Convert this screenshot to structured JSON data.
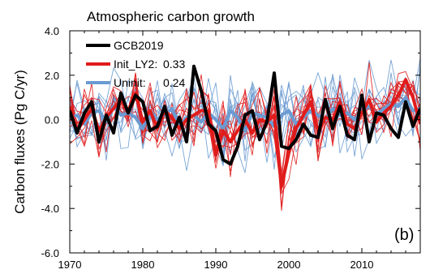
{
  "chart_data": {
    "type": "line",
    "title": "Atmospheric carbon growth",
    "ylabel": "Carbon fluxes (Pg C/yr)",
    "xlabel": "",
    "xlim": [
      1970,
      2018
    ],
    "ylim": [
      -6.0,
      4.0
    ],
    "x_ticks": [
      1970,
      1980,
      1990,
      2000,
      2010
    ],
    "x_tick_labels": [
      "1970",
      "1980",
      "1990",
      "2000",
      "2010"
    ],
    "y_ticks": [
      -6.0,
      -4.0,
      -2.0,
      0.0,
      2.0,
      4.0
    ],
    "y_tick_labels": [
      "-6.0",
      "-4.0",
      "-2.0",
      "0.0",
      "2.0",
      "4.0"
    ],
    "panel_label": "(b)",
    "legend_position": "top-left",
    "legend": [
      {
        "series": "GCB2019",
        "label": "GCB2019",
        "score": "",
        "color": "#000000"
      },
      {
        "series": "Init_LY2",
        "label": "Init_LY2:",
        "score": "0.33",
        "color": "#e01b1b"
      },
      {
        "series": "Uninit",
        "label": "Uninit:",
        "score": "0.24",
        "color": "#6b9bd2"
      }
    ],
    "x": [
      1970,
      1971,
      1972,
      1973,
      1974,
      1975,
      1976,
      1977,
      1978,
      1979,
      1980,
      1981,
      1982,
      1983,
      1984,
      1985,
      1986,
      1987,
      1988,
      1989,
      1990,
      1991,
      1992,
      1993,
      1994,
      1995,
      1996,
      1997,
      1998,
      1999,
      2000,
      2001,
      2002,
      2003,
      2004,
      2005,
      2006,
      2007,
      2008,
      2009,
      2010,
      2011,
      2012,
      2013,
      2014,
      2015,
      2016,
      2017,
      2018
    ],
    "series": [
      {
        "name": "GCB2019",
        "color": "#000000",
        "width": 4,
        "values": [
          0.4,
          -0.6,
          0.3,
          0.8,
          -1.0,
          0.2,
          -0.6,
          1.2,
          0.3,
          1.1,
          0.8,
          -0.5,
          -0.3,
          0.6,
          -0.7,
          0.1,
          -1.0,
          2.4,
          1.3,
          -0.2,
          -0.5,
          -1.8,
          -2.0,
          -1.2,
          0.2,
          0.4,
          -0.9,
          -0.1,
          2.1,
          -1.2,
          -1.3,
          -0.9,
          -0.2,
          -0.7,
          -0.8,
          0.9,
          -0.4,
          0.6,
          -0.7,
          -0.9,
          1.1,
          -1.0,
          0.3,
          0.2,
          -0.4,
          -0.8,
          0.8,
          -0.3,
          0.5
        ]
      },
      {
        "name": "Init_LY2",
        "color": "#e01b1b",
        "width": 4,
        "values": [
          0.6,
          -0.5,
          0.0,
          0.5,
          -0.5,
          0.1,
          0.5,
          0.9,
          0.3,
          1.2,
          -0.1,
          0.4,
          -0.4,
          0.4,
          0.1,
          -0.4,
          0.0,
          0.2,
          0.4,
          0.4,
          -1.6,
          -0.5,
          -1.0,
          -0.5,
          0.0,
          -0.6,
          0.0,
          -0.1,
          0.2,
          -3.0,
          -1.5,
          -0.4,
          0.2,
          0.8,
          -0.5,
          0.1,
          0.0,
          0.8,
          -0.2,
          -0.4,
          0.3,
          0.9,
          -0.1,
          0.3,
          0.6,
          1.1,
          1.8,
          1.0,
          -0.2
        ]
      },
      {
        "name": "Uninit",
        "color": "#6b9bd2",
        "width": 4,
        "values": [
          0.1,
          0.2,
          -0.2,
          0.3,
          0.4,
          -0.1,
          0.6,
          0.2,
          0.3,
          0.1,
          -0.4,
          0.4,
          0.0,
          0.2,
          0.5,
          -0.3,
          0.1,
          0.2,
          -0.1,
          0.3,
          0.0,
          -0.4,
          0.4,
          0.1,
          -0.5,
          0.3,
          0.2,
          0.1,
          -0.3,
          0.2,
          0.4,
          -0.2,
          0.1,
          0.4,
          0.2,
          0.0,
          0.5,
          0.2,
          0.3,
          0.0,
          0.4,
          0.6,
          0.2,
          0.5,
          0.7,
          0.6,
          1.0,
          0.4,
          0.5
        ]
      }
    ],
    "ensembles": [
      {
        "name": "Init_LY2",
        "color": "#e01b1b",
        "members": 10,
        "spread": 1.0
      },
      {
        "name": "Uninit",
        "color": "#6b9bd2",
        "members": 10,
        "spread": 1.3
      }
    ]
  }
}
